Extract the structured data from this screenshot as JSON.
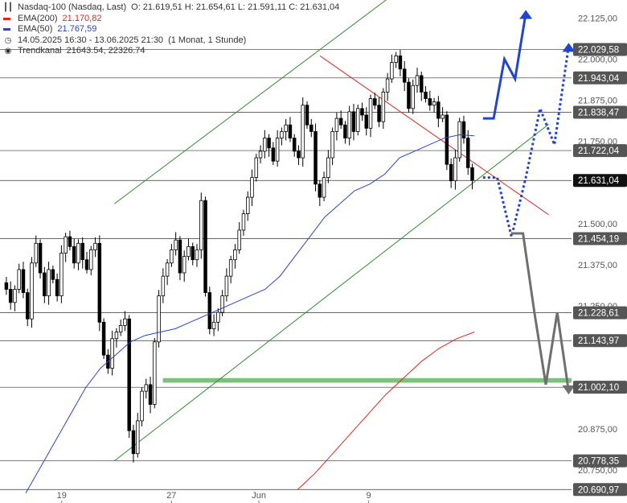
{
  "legend": {
    "instrument": "Nasdaq-100 (Nasdaq, Last)",
    "ohlc": "O: 21.619,51  H: 21.654,61  L: 21.591,11  C: 21.631,04",
    "ema200_label": "EMA(200)",
    "ema200_value": "21.170,82",
    "ema50_label": "EMA(50)",
    "ema50_value": "21.767,59",
    "period": "14.05.2025 16:30 - 13.06.2025 21:30",
    "period_note": "(1 Monat, 1 Stunde)",
    "trend_label": "Trendkanal",
    "trend_values": "21643.54, 22326.74"
  },
  "colors": {
    "ema200": "#e8231b",
    "ema50": "#2743d6",
    "channel": "#2f8a2f",
    "resistance": "#e8231b",
    "bull_arrow": "#1f45d8",
    "bear_arrow": "#6f6f6f",
    "support_band": "#7fbf7f",
    "price_tag_bg": "#555555",
    "last_tag_bg": "#111111"
  },
  "chart_data": {
    "type": "candlestick",
    "instrument": "Nasdaq-100",
    "timeframe": "1 hour",
    "ylim": [
      20650,
      22180
    ],
    "y_ticks": [
      22125,
      22000,
      21875,
      21750,
      21500,
      21375,
      21250,
      20875,
      20750
    ],
    "y_tick_labels": [
      "22.125,00",
      "22.000,00",
      "21.875,00",
      "21.750,00",
      "21.500,00",
      "21.375,00",
      "21.250,00",
      "20.875,00",
      "20.750,00"
    ],
    "x_labels": [
      "19",
      "27",
      "Jun",
      "9"
    ],
    "close_path": [
      21320,
      21300,
      21260,
      21300,
      21360,
      21290,
      21210,
      21380,
      21440,
      21350,
      21280,
      21360,
      21330,
      21280,
      21410,
      21460,
      21430,
      21380,
      21440,
      21390,
      21360,
      21420,
      21440,
      21200,
      21100,
      21060,
      21150,
      21170,
      21190,
      21210,
      20870,
      20800,
      20900,
      20990,
      21010,
      20950,
      21140,
      21280,
      21340,
      21380,
      21420,
      21450,
      21350,
      21400,
      21430,
      21390,
      21420,
      21570,
      21290,
      21180,
      21200,
      21230,
      21280,
      21340,
      21390,
      21420,
      21480,
      21530,
      21580,
      21640,
      21700,
      21720,
      21760,
      21730,
      21690,
      21760,
      21780,
      21800,
      21760,
      21720,
      21700,
      21860,
      21800,
      21780,
      21620,
      21580,
      21640,
      21700,
      21780,
      21820,
      21800,
      21760,
      21840,
      21780,
      21850,
      21830,
      21790,
      21880,
      21860,
      21810,
      21900,
      21940,
      21990,
      22010,
      21970,
      21930,
      21850,
      21920,
      21950,
      21900,
      21880,
      21860,
      21870,
      21820,
      21830,
      21680,
      21630,
      21700,
      21810,
      21760,
      21670,
      21631
    ],
    "ema50_path": [
      20680,
      20760,
      20840,
      20920,
      21000,
      21060,
      21100,
      21140,
      21160,
      21170,
      21180,
      21200,
      21220,
      21240,
      21260,
      21280,
      21300,
      21340,
      21400,
      21460,
      21520,
      21560,
      21600,
      21620,
      21650,
      21700,
      21720,
      21740,
      21760,
      21770,
      21767
    ],
    "ema200_path": [
      20690,
      20740,
      20800,
      20860,
      20920,
      20980,
      21030,
      21080,
      21120,
      21150,
      21170
    ],
    "channel_upper": [
      [
        20,
        21560
      ],
      [
        68,
        22186
      ]
    ],
    "channel_lower": [
      [
        20,
        20778
      ],
      [
        96,
        21802
      ]
    ],
    "resistance": [
      [
        56,
        22010
      ],
      [
        96,
        21527
      ]
    ],
    "levels": [
      {
        "value": "22.029,58"
      },
      {
        "value": "21.943,04"
      },
      {
        "value": "21.838,47"
      },
      {
        "value": "21.722,04"
      },
      {
        "value": "21.631,04",
        "last": true
      },
      {
        "value": "21.454,19"
      },
      {
        "value": "21.228,61"
      },
      {
        "value": "21.143,97"
      },
      {
        "value": "21.002,10"
      },
      {
        "value": "20.778,35"
      },
      {
        "value": "20.690,97"
      }
    ],
    "support_band": [
      21016,
      21030
    ],
    "scenario_bull_primary": [
      21820,
      21820,
      22000,
      21940,
      22140
    ],
    "scenario_bull_alt": [
      21640,
      21640,
      21460,
      21640,
      21850,
      21740,
      22040
    ],
    "scenario_bear": [
      21470,
      21470,
      21230,
      21010,
      21230,
      20990
    ]
  }
}
